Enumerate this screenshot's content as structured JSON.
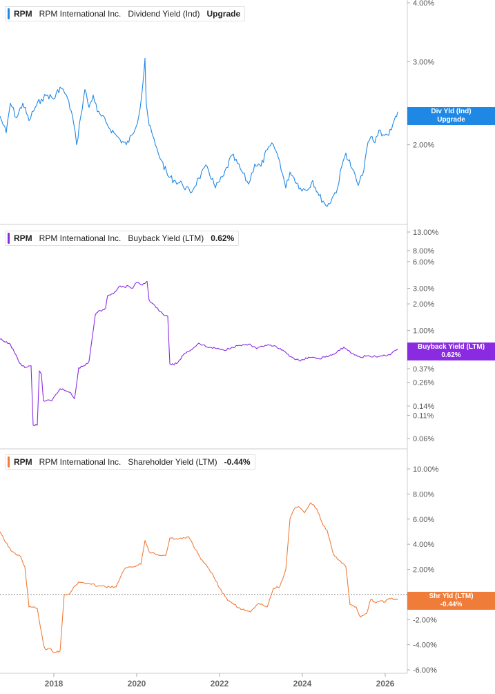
{
  "x_axis": {
    "ticks": [
      "2018",
      "2020",
      "2022",
      "2024",
      "2026"
    ]
  },
  "panels": [
    {
      "ticker": "RPM",
      "company": "RPM International Inc.",
      "metric": "Dividend Yield (Ind)",
      "value_label": "Upgrade",
      "tag_line1": "Div Yld (Ind)",
      "tag_line2": "Upgrade",
      "color": "#1f88e5",
      "ticks": [
        "4.00%",
        "3.00%",
        "2.00%"
      ]
    },
    {
      "ticker": "RPM",
      "company": "RPM International Inc.",
      "metric": "Buyback Yield (LTM)",
      "value_label": "0.62%",
      "tag_line1": "Buyback Yield (LTM)",
      "tag_line2": "0.62%",
      "color": "#8a2be2",
      "ticks": [
        "13.00%",
        "8.00%",
        "6.00%",
        "3.00%",
        "2.00%",
        "1.00%",
        "0.37%",
        "0.26%",
        "0.14%",
        "0.11%",
        "0.06%"
      ]
    },
    {
      "ticker": "RPM",
      "company": "RPM International Inc.",
      "metric": "Shareholder Yield (LTM)",
      "value_label": "-0.44%",
      "tag_line1": "Shr Yld (LTM)",
      "tag_line2": "-0.44%",
      "color": "#f07c3a",
      "ticks": [
        "10.00%",
        "8.00%",
        "6.00%",
        "4.00%",
        "2.00%",
        "0.00%",
        "-2.00%",
        "-4.00%",
        "-6.00%"
      ]
    }
  ],
  "chart_data": [
    {
      "type": "line",
      "title": "RPM RPM International Inc. Dividend Yield (Ind)",
      "scale": "log",
      "ylim": [
        1.45,
        4.0
      ],
      "series": [
        {
          "name": "Dividend Yield (Ind)",
          "x": [
            2016.7,
            2016.85,
            2016.95,
            2017.1,
            2017.25,
            2017.4,
            2017.55,
            2017.7,
            2017.85,
            2018.0,
            2018.15,
            2018.3,
            2018.45,
            2018.55,
            2018.65,
            2018.75,
            2018.85,
            2018.95,
            2019.05,
            2019.15,
            2019.3,
            2019.45,
            2019.6,
            2019.75,
            2019.9,
            2020.05,
            2020.15,
            2020.2,
            2020.23,
            2020.3,
            2020.45,
            2020.6,
            2020.75,
            2020.9,
            2021.1,
            2021.3,
            2021.5,
            2021.7,
            2021.9,
            2022.1,
            2022.3,
            2022.5,
            2022.7,
            2022.85,
            2023.0,
            2023.15,
            2023.3,
            2023.45,
            2023.6,
            2023.7,
            2023.8,
            2023.95,
            2024.1,
            2024.25,
            2024.4,
            2024.5,
            2024.6,
            2024.75,
            2024.85,
            2024.95,
            2025.05,
            2025.2,
            2025.35,
            2025.45,
            2025.55,
            2025.65,
            2025.75,
            2025.85,
            2025.95,
            2026.05,
            2026.15,
            2026.25,
            2026.3
          ],
          "values": [
            2.3,
            2.12,
            2.45,
            2.28,
            2.45,
            2.25,
            2.4,
            2.5,
            2.55,
            2.5,
            2.65,
            2.55,
            2.3,
            2.0,
            2.3,
            2.62,
            2.4,
            2.55,
            2.35,
            2.3,
            2.2,
            2.12,
            2.05,
            2.0,
            2.1,
            2.3,
            2.7,
            3.05,
            2.45,
            2.2,
            2.0,
            1.85,
            1.72,
            1.68,
            1.65,
            1.58,
            1.7,
            1.8,
            1.62,
            1.72,
            1.9,
            1.78,
            1.65,
            1.82,
            1.8,
            1.95,
            2.0,
            1.85,
            1.62,
            1.75,
            1.7,
            1.62,
            1.6,
            1.68,
            1.56,
            1.52,
            1.48,
            1.56,
            1.62,
            1.8,
            1.92,
            1.78,
            1.64,
            1.72,
            1.95,
            2.08,
            2.02,
            2.15,
            2.1,
            2.1,
            2.15,
            2.3,
            2.35
          ]
        }
      ]
    },
    {
      "type": "line",
      "title": "RPM RPM International Inc. Buyback Yield (LTM)",
      "scale": "log",
      "ylim": [
        0.055,
        13.0
      ],
      "series": [
        {
          "name": "Buyback Yield (LTM)",
          "x": [
            2016.7,
            2016.8,
            2016.95,
            2017.05,
            2017.15,
            2017.2,
            2017.25,
            2017.3,
            2017.45,
            2017.5,
            2017.6,
            2017.65,
            2017.7,
            2017.75,
            2017.95,
            2018.15,
            2018.4,
            2018.5,
            2018.6,
            2018.75,
            2018.85,
            2019.0,
            2019.05,
            2019.25,
            2019.3,
            2019.4,
            2019.5,
            2019.6,
            2019.7,
            2019.8,
            2019.9,
            2020.0,
            2020.1,
            2020.2,
            2020.25,
            2020.3,
            2020.4,
            2020.5,
            2020.65,
            2020.75,
            2020.8,
            2020.9,
            2021.0,
            2021.15,
            2021.3,
            2021.5,
            2021.7,
            2021.9,
            2022.1,
            2022.3,
            2022.5,
            2022.7,
            2022.9,
            2023.1,
            2023.3,
            2023.5,
            2023.75,
            2023.95,
            2024.15,
            2024.35,
            2024.55,
            2024.8,
            2025.0,
            2025.2,
            2025.4,
            2025.6,
            2025.8,
            2026.0,
            2026.15,
            2026.25,
            2026.3
          ],
          "values": [
            0.8,
            0.75,
            0.7,
            0.56,
            0.45,
            0.42,
            0.4,
            0.38,
            0.4,
            0.085,
            0.085,
            0.35,
            0.32,
            0.16,
            0.16,
            0.22,
            0.2,
            0.17,
            0.38,
            0.4,
            0.45,
            1.5,
            1.6,
            1.8,
            2.5,
            2.6,
            2.8,
            3.2,
            3.1,
            3.2,
            3.0,
            3.5,
            3.3,
            3.4,
            3.6,
            2.2,
            2.0,
            1.8,
            1.5,
            1.45,
            0.42,
            0.41,
            0.44,
            0.55,
            0.6,
            0.72,
            0.65,
            0.63,
            0.6,
            0.65,
            0.68,
            0.7,
            0.62,
            0.68,
            0.67,
            0.6,
            0.5,
            0.45,
            0.5,
            0.48,
            0.5,
            0.55,
            0.65,
            0.55,
            0.5,
            0.52,
            0.5,
            0.52,
            0.55,
            0.6,
            0.62
          ]
        }
      ]
    },
    {
      "type": "line",
      "title": "RPM RPM International Inc. Shareholder Yield (LTM)",
      "ylim": [
        -6.0,
        10.0
      ],
      "series": [
        {
          "name": "Shareholder Yield (LTM)",
          "x": [
            2016.7,
            2016.9,
            2017.0,
            2017.2,
            2017.3,
            2017.4,
            2017.45,
            2017.6,
            2017.75,
            2017.8,
            2017.9,
            2018.0,
            2018.15,
            2018.25,
            2018.35,
            2018.6,
            2018.9,
            2019.25,
            2019.5,
            2019.7,
            2019.85,
            2020.1,
            2020.2,
            2020.3,
            2020.5,
            2020.7,
            2020.8,
            2021.0,
            2021.25,
            2021.55,
            2021.75,
            2021.85,
            2022.0,
            2022.2,
            2022.35,
            2022.55,
            2022.75,
            2022.95,
            2023.15,
            2023.3,
            2023.45,
            2023.6,
            2023.7,
            2023.8,
            2023.9,
            2024.05,
            2024.2,
            2024.35,
            2024.5,
            2024.6,
            2024.75,
            2024.85,
            2024.95,
            2025.05,
            2025.15,
            2025.3,
            2025.4,
            2025.55,
            2025.65,
            2025.75,
            2025.9,
            2026.0,
            2026.1,
            2026.25,
            2026.3
          ],
          "values": [
            5.0,
            3.8,
            3.4,
            3.0,
            2.2,
            -1.0,
            -1.0,
            -1.1,
            -4.0,
            -4.4,
            -4.3,
            -4.6,
            -4.5,
            0.0,
            0.0,
            1.0,
            0.8,
            0.6,
            0.6,
            2.0,
            2.2,
            2.4,
            4.3,
            3.4,
            3.2,
            3.1,
            4.5,
            4.4,
            4.6,
            2.8,
            2.0,
            1.5,
            0.5,
            -0.5,
            -0.8,
            -1.2,
            -1.4,
            -0.7,
            -1.0,
            0.5,
            0.6,
            2.0,
            6.0,
            6.8,
            7.0,
            6.5,
            7.3,
            6.8,
            5.5,
            5.1,
            3.2,
            2.8,
            2.5,
            2.2,
            -0.8,
            -1.0,
            -1.8,
            -1.5,
            -0.4,
            -0.6,
            -0.5,
            -0.6,
            -0.3,
            -0.4,
            -0.44
          ]
        }
      ]
    }
  ]
}
